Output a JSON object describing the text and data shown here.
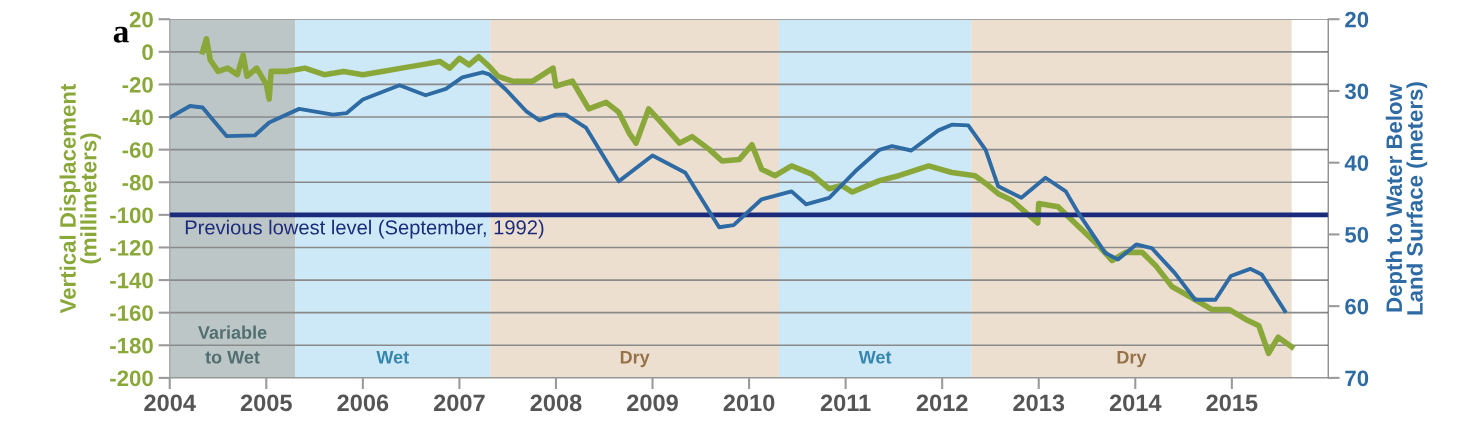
{
  "chart_data": {
    "type": "line",
    "xlabel": null,
    "ylabel": "Vertical Displacement\n(millimeters)",
    "y2label": "Depth to Water Below\nLand Surface (meters)",
    "annotations": [
      "a"
    ],
    "xlim": [
      2004,
      2016
    ],
    "xticks": [
      2004,
      2005,
      2006,
      2007,
      2008,
      2009,
      2010,
      2011,
      2012,
      2013,
      2014,
      2015
    ],
    "ylim": [
      -200,
      20
    ],
    "yticks": [
      20,
      0,
      -20,
      -40,
      -60,
      -80,
      -100,
      -120,
      -140,
      -160,
      -180,
      -200
    ],
    "y2lim": [
      70,
      20
    ],
    "y2ticks": [
      20,
      30,
      40,
      50,
      60,
      70
    ],
    "grid": "y",
    "legend": false,
    "series": [
      {
        "color": "#8aa83a",
        "axis": "y",
        "x": [
          2004.34,
          2004.38,
          2004.42,
          2004.5,
          2004.6,
          2004.7,
          2004.76,
          2004.8,
          2004.9,
          2005.0,
          2005.03,
          2005.05,
          2005.2,
          2005.4,
          2005.6,
          2005.8,
          2006.0,
          2006.2,
          2006.4,
          2006.6,
          2006.8,
          2006.9,
          2007.0,
          2007.1,
          2007.2,
          2007.31,
          2007.4,
          2007.55,
          2007.76,
          2007.97,
          2008.0,
          2008.17,
          2008.34,
          2008.52,
          2008.65,
          2008.76,
          2008.83,
          2008.96,
          2009.07,
          2009.28,
          2009.41,
          2009.59,
          2009.72,
          2009.9,
          2010.03,
          2010.13,
          2010.27,
          2010.44,
          2010.65,
          2010.83,
          2010.96,
          2011.07,
          2011.35,
          2011.55,
          2011.86,
          2012.1,
          2012.34,
          2012.48,
          2012.58,
          2012.72,
          2012.99,
          2013.0,
          2013.2,
          2013.41,
          2013.62,
          2013.76,
          2013.9,
          2014.07,
          2014.21,
          2014.38,
          2014.59,
          2014.79,
          2014.97,
          2015.14,
          2015.28,
          2015.38,
          2015.48,
          2015.62
        ],
        "values": [
          0,
          8,
          -5,
          -12,
          -10,
          -14,
          -2,
          -15,
          -10,
          -20,
          -29,
          -12,
          -12,
          -10,
          -14,
          -12,
          -14,
          -12,
          -10,
          -8,
          -6,
          -10,
          -4,
          -8,
          -3,
          -9,
          -15,
          -18,
          -18,
          -10,
          -21,
          -18,
          -35,
          -31,
          -37,
          -50,
          -56,
          -35,
          -42,
          -56,
          -52,
          -60,
          -67,
          -66,
          -57,
          -72,
          -76,
          -70,
          -75,
          -84,
          -82,
          -86,
          -79,
          -76,
          -70,
          -74,
          -76,
          -82,
          -87,
          -91,
          -105,
          -93,
          -95,
          -107,
          -119,
          -128,
          -123,
          -123,
          -131,
          -144,
          -151,
          -158,
          -158,
          -164,
          -168,
          -185,
          -175,
          -181
        ]
      },
      {
        "color": "#2e6aa3",
        "axis": "y2",
        "x": [
          2004.0,
          2004.21,
          2004.34,
          2004.59,
          2004.88,
          2005.03,
          2005.34,
          2005.69,
          2005.83,
          2006.0,
          2006.38,
          2006.65,
          2006.86,
          2007.03,
          2007.24,
          2007.31,
          2007.48,
          2007.69,
          2007.83,
          2008.0,
          2008.1,
          2008.31,
          2008.65,
          2009.0,
          2009.34,
          2009.69,
          2009.84,
          2010.13,
          2010.44,
          2010.59,
          2010.83,
          2011.1,
          2011.35,
          2011.48,
          2011.68,
          2011.96,
          2012.1,
          2012.27,
          2012.45,
          2012.58,
          2012.82,
          2013.07,
          2013.28,
          2013.41,
          2013.69,
          2013.82,
          2014.01,
          2014.17,
          2014.41,
          2014.62,
          2014.83,
          2014.99,
          2015.19,
          2015.31,
          2015.55
        ],
        "values": [
          33.7,
          32.1,
          32.3,
          36.3,
          36.2,
          34.4,
          32.5,
          33.3,
          33.1,
          31.2,
          29.2,
          30.6,
          29.7,
          28.1,
          27.4,
          27.7,
          29.8,
          32.8,
          34.1,
          33.3,
          33.3,
          35.1,
          42.6,
          39.0,
          41.4,
          49.0,
          48.7,
          45.1,
          44.0,
          45.8,
          44.9,
          41.2,
          38.2,
          37.7,
          38.3,
          35.5,
          34.7,
          34.8,
          38.2,
          43.3,
          44.9,
          42.1,
          44.0,
          47.0,
          52.6,
          53.5,
          51.4,
          51.9,
          55.4,
          59.1,
          59.1,
          55.8,
          54.8,
          55.6,
          60.7
        ]
      }
    ],
    "ref_lines": [
      {
        "axis": "y",
        "value": -100,
        "label": "Previous lowest level (September, 1992)",
        "color": "#1c2a7c"
      }
    ],
    "bands": [
      {
        "axis": "x",
        "from": 2004,
        "to": 2005.3,
        "label": "Variable\nto Wet",
        "color": "#bcc6c6"
      },
      {
        "axis": "x",
        "from": 2005.3,
        "to": 2007.32,
        "label": "Wet",
        "color": "#cde9f7"
      },
      {
        "axis": "x",
        "from": 2007.32,
        "to": 2010.31,
        "label": "Dry",
        "color": "#ecdfd0"
      },
      {
        "axis": "x",
        "from": 2010.31,
        "to": 2012.3,
        "label": "Wet",
        "color": "#cde9f7"
      },
      {
        "axis": "x",
        "from": 2012.3,
        "to": 2015.62,
        "label": "Dry",
        "color": "#ecdfd0"
      }
    ]
  }
}
